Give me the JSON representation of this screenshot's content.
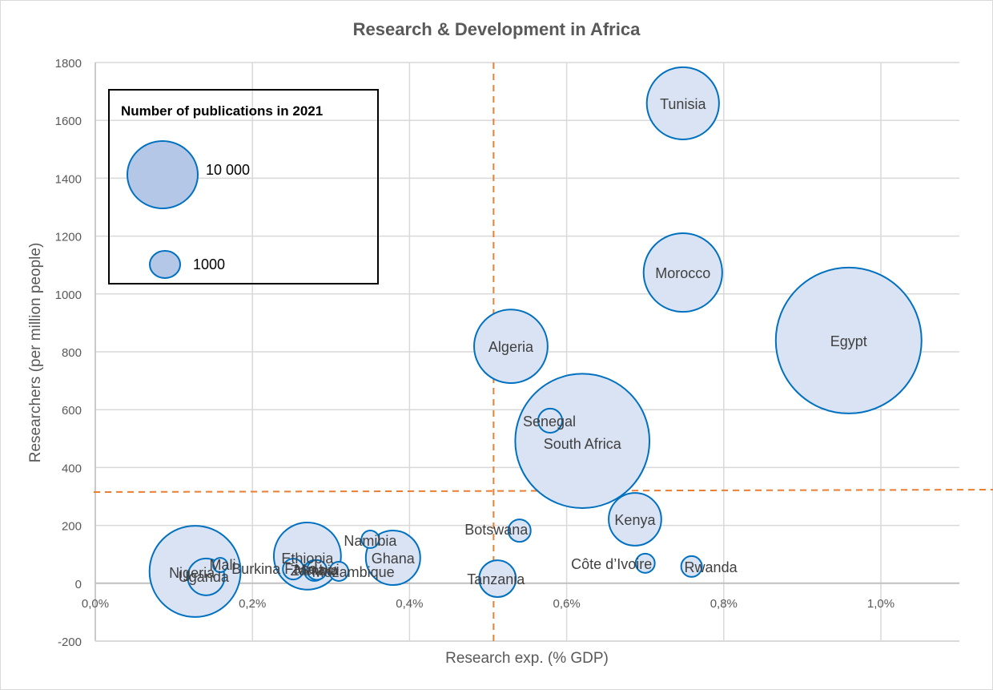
{
  "chart_data": {
    "type": "bubble",
    "title": "Research & Development in Africa",
    "xlabel": "Research exp. (% GDP)",
    "ylabel": "Researchers (per million people)",
    "xlim": [
      0.0,
      1.1
    ],
    "ylim": [
      -200,
      1800
    ],
    "x_ticks": [
      0.0,
      0.2,
      0.4,
      0.6,
      0.8,
      1.0
    ],
    "x_tick_labels": [
      "0,0%",
      "0,2%",
      "0,4%",
      "0,6%",
      "0,8%",
      "1,0%"
    ],
    "y_ticks": [
      -200,
      0,
      200,
      400,
      600,
      800,
      1000,
      1200,
      1400,
      1600,
      1800
    ],
    "y_tick_labels": [
      "-200",
      "0",
      "200",
      "400",
      "600",
      "800",
      "1000",
      "1200",
      "1400",
      "1600",
      "1800"
    ],
    "grid": true,
    "size_legend": {
      "title": "Number of publications in 2021",
      "entries": [
        {
          "label": "10 000",
          "value": 10000
        },
        {
          "label": "1000",
          "value": 1000
        }
      ],
      "placement": "top-left"
    },
    "reference_lines": [
      {
        "orientation": "vertical",
        "x": 0.507,
        "color": "#ed7d31",
        "style": "dashed"
      },
      {
        "orientation": "horizontal",
        "y": 318,
        "color": "#ed7d31",
        "style": "dashed"
      }
    ],
    "series": [
      {
        "name": "Egypt",
        "x": 0.959,
        "y": 839,
        "publications": 33000
      },
      {
        "name": "South Africa",
        "x": 0.62,
        "y": 492,
        "publications": 28000
      },
      {
        "name": "Nigeria",
        "x": 0.127,
        "y": 41,
        "publications": 12900
      },
      {
        "name": "Morocco",
        "x": 0.748,
        "y": 1074,
        "publications": 9600
      },
      {
        "name": "Algeria",
        "x": 0.529,
        "y": 819,
        "publications": 8400
      },
      {
        "name": "Tunisia",
        "x": 0.748,
        "y": 1659,
        "publications": 8100
      },
      {
        "name": "Ethiopia",
        "x": 0.27,
        "y": 94,
        "publications": 7000
      },
      {
        "name": "Ghana",
        "x": 0.379,
        "y": 88,
        "publications": 4600
      },
      {
        "name": "Kenya",
        "x": 0.687,
        "y": 221,
        "publications": 4300
      },
      {
        "name": "Uganda",
        "x": 0.141,
        "y": 22,
        "publications": 2100
      },
      {
        "name": "Tanzania",
        "x": 0.512,
        "y": 16,
        "publications": 2100
      },
      {
        "name": "Senegal",
        "x": 0.579,
        "y": 562,
        "publications": 900
      },
      {
        "name": "Botswana",
        "x": 0.54,
        "y": 182,
        "publications": 780
      },
      {
        "name": "Burkina Faso",
        "x": 0.252,
        "y": 49,
        "publications": 670
      },
      {
        "name": "Zambia",
        "x": 0.279,
        "y": 44,
        "publications": 670
      },
      {
        "name": "Malawi",
        "x": 0.282,
        "y": 46,
        "publications": 600
      },
      {
        "name": "Rwanda",
        "x": 0.759,
        "y": 58,
        "publications": 670
      },
      {
        "name": "Mozambique",
        "x": 0.31,
        "y": 41,
        "publications": 570
      },
      {
        "name": "Côte d’Ivoire",
        "x": 0.7,
        "y": 69,
        "publications": 570
      },
      {
        "name": "Namibia",
        "x": 0.35,
        "y": 152,
        "publications": 480
      },
      {
        "name": "Mali",
        "x": 0.159,
        "y": 63,
        "publications": 320
      }
    ]
  }
}
